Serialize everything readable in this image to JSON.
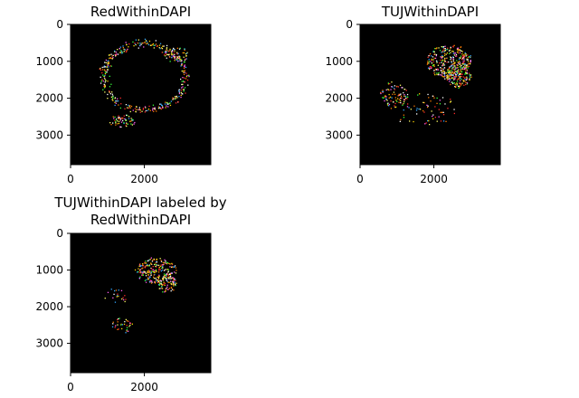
{
  "chart_data": [
    {
      "type": "heatmap",
      "title": "RedWithinDAPI",
      "title_lines": [
        "RedWithinDAPI"
      ],
      "xlim": [
        0,
        3800
      ],
      "ylim": [
        3800,
        0
      ],
      "xticks": [
        0,
        2000
      ],
      "xtick_labels": [
        "0",
        "2000"
      ],
      "yticks": [
        0,
        1000,
        2000,
        3000
      ],
      "ytick_labels": [
        "0",
        "1000",
        "2000",
        "3000"
      ],
      "background": "#000000",
      "clusters": [
        {
          "cx": 2000,
          "cy": 1400,
          "rx": 1100,
          "ry": 900,
          "ring": true,
          "n": 360,
          "spread": 180
        },
        {
          "cx": 2850,
          "cy": 800,
          "rx": 350,
          "ry": 220,
          "ring": false,
          "n": 60,
          "spread": 150
        },
        {
          "cx": 1400,
          "cy": 2600,
          "rx": 350,
          "ry": 150,
          "ring": false,
          "n": 60,
          "spread": 120
        }
      ]
    },
    {
      "type": "heatmap",
      "title": "TUJWithinDAPI",
      "title_lines": [
        "TUJWithinDAPI"
      ],
      "xlim": [
        0,
        3800
      ],
      "ylim": [
        3800,
        0
      ],
      "xticks": [
        0,
        2000
      ],
      "xtick_labels": [
        "0",
        "2000"
      ],
      "yticks": [
        0,
        1000,
        2000,
        3000
      ],
      "ytick_labels": [
        "0",
        "1000",
        "2000",
        "3000"
      ],
      "background": "#000000",
      "clusters": [
        {
          "cx": 2400,
          "cy": 1000,
          "rx": 600,
          "ry": 450,
          "ring": false,
          "n": 320,
          "spread": 160
        },
        {
          "cx": 2650,
          "cy": 1350,
          "rx": 350,
          "ry": 350,
          "ring": false,
          "n": 160,
          "spread": 120
        },
        {
          "cx": 900,
          "cy": 1900,
          "rx": 400,
          "ry": 350,
          "ring": false,
          "n": 90,
          "spread": 150
        },
        {
          "cx": 1700,
          "cy": 2300,
          "rx": 900,
          "ry": 450,
          "ring": false,
          "n": 70,
          "spread": 200
        }
      ]
    },
    {
      "type": "heatmap",
      "title": "TUJWithinDAPI labeled by\nRedWithinDAPI",
      "title_lines": [
        "TUJWithinDAPI labeled by",
        "RedWithinDAPI"
      ],
      "xlim": [
        0,
        3800
      ],
      "ylim": [
        3800,
        0
      ],
      "xticks": [
        0,
        2000
      ],
      "xtick_labels": [
        "0",
        "2000"
      ],
      "yticks": [
        0,
        1000,
        2000,
        3000
      ],
      "ytick_labels": [
        "0",
        "1000",
        "2000",
        "3000"
      ],
      "background": "#000000",
      "clusters": [
        {
          "cx": 2300,
          "cy": 1000,
          "rx": 550,
          "ry": 350,
          "ring": false,
          "n": 220,
          "spread": 140
        },
        {
          "cx": 2600,
          "cy": 1350,
          "rx": 250,
          "ry": 250,
          "ring": false,
          "n": 90,
          "spread": 100
        },
        {
          "cx": 1400,
          "cy": 2500,
          "rx": 300,
          "ry": 200,
          "ring": false,
          "n": 35,
          "spread": 120
        },
        {
          "cx": 1200,
          "cy": 1700,
          "rx": 300,
          "ry": 200,
          "ring": false,
          "n": 20,
          "spread": 150
        }
      ]
    }
  ],
  "point_colors": [
    "#ff2a2a",
    "#ffd400",
    "#ffffff",
    "#35ff3a",
    "#31a6ff",
    "#ff7a00",
    "#ff5cf0",
    "#ffff66"
  ]
}
